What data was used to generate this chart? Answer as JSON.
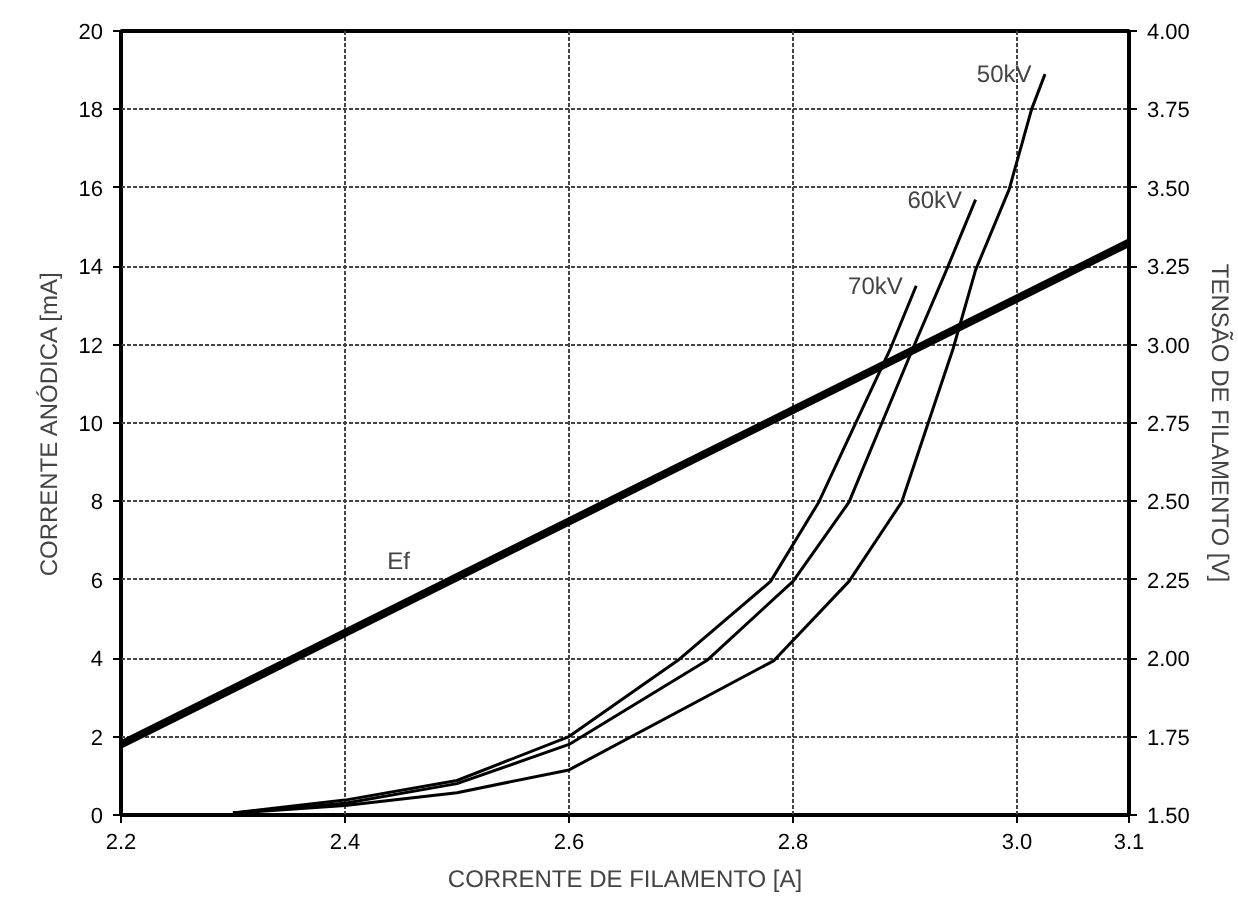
{
  "chart_data": {
    "type": "line",
    "xlabel": "CORRENTE DE FILAMENTO [A]",
    "ylabel": "CORRENTE ANÓDICA [mA]",
    "y2label": "TENSÃO DE FILAMENTO [V]",
    "xlim": [
      2.2,
      3.1
    ],
    "xticks": [
      2.2,
      2.4,
      2.6,
      2.8,
      {
        "value": 3.0,
        "label": "3.0"
      },
      3.1
    ],
    "ylim": [
      0,
      20
    ],
    "yticks": [
      0,
      2,
      4,
      6,
      8,
      10,
      12,
      14,
      16,
      18,
      20
    ],
    "y2lim": [
      1.5,
      4.0
    ],
    "y2ticks": [
      {
        "value": 1.5,
        "label": "1.50"
      },
      {
        "value": 1.75,
        "label": "1.75"
      },
      {
        "value": 2.0,
        "label": "2.00"
      },
      {
        "value": 2.25,
        "label": "2.25"
      },
      {
        "value": 2.5,
        "label": "2.50"
      },
      {
        "value": 2.75,
        "label": "2.75"
      },
      {
        "value": 3.0,
        "label": "3.00"
      },
      {
        "value": 3.25,
        "label": "3.25"
      },
      {
        "value": 3.5,
        "label": "3.50"
      },
      {
        "value": 3.75,
        "label": "3.75"
      },
      {
        "value": 4.0,
        "label": "4.00"
      }
    ],
    "grid": true,
    "marker": "none",
    "line_style": "solid",
    "series": [
      {
        "name": "50kV",
        "color": "#000000",
        "x": [
          2.3,
          2.4,
          2.5,
          2.6,
          2.783,
          2.85,
          2.897,
          2.943,
          2.963,
          2.993,
          3.013,
          3.025
        ],
        "values": [
          0.05,
          0.24,
          0.57,
          1.15,
          3.94,
          5.96,
          7.98,
          11.9,
          13.9,
          15.96,
          18.0,
          18.9
        ]
      },
      {
        "name": "60kV",
        "color": "#000000",
        "x": [
          2.3,
          2.4,
          2.5,
          2.6,
          2.723,
          2.8,
          2.85,
          2.907,
          2.937,
          2.963
        ],
        "values": [
          0.05,
          0.3,
          0.8,
          1.8,
          3.94,
          5.96,
          7.98,
          11.9,
          13.9,
          15.7
        ]
      },
      {
        "name": "70kV",
        "color": "#000000",
        "x": [
          2.3,
          2.4,
          2.5,
          2.6,
          2.697,
          2.78,
          2.823,
          2.887,
          2.91
        ],
        "values": [
          0.05,
          0.38,
          0.88,
          2.0,
          3.94,
          5.96,
          7.98,
          11.9,
          13.5
        ]
      },
      {
        "name": "Ef",
        "color": "#000000",
        "axis": "y2",
        "x": [
          2.2,
          3.1
        ],
        "values": [
          1.725,
          3.325
        ]
      }
    ]
  }
}
